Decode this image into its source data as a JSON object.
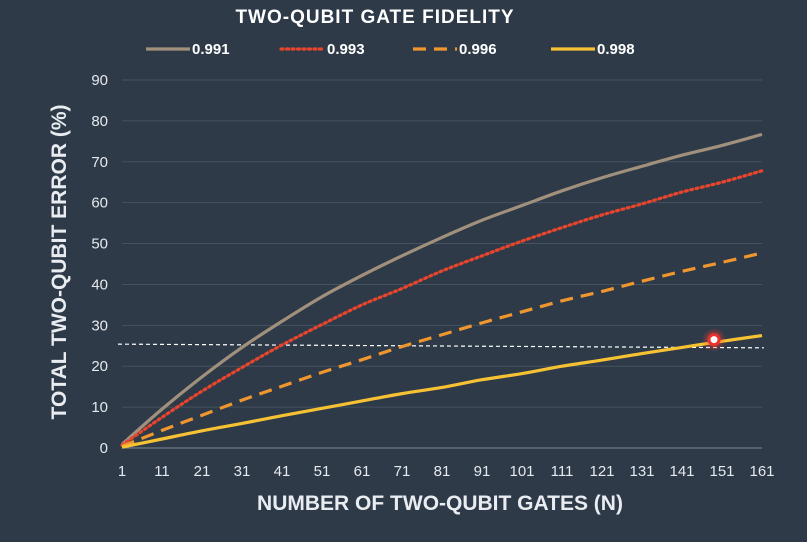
{
  "chart_data": {
    "type": "line",
    "title": "TWO-QUBIT GATE FIDELITY",
    "xlabel": "NUMBER OF TWO-QUBIT GATES (N)",
    "ylabel": "TOTAL TWO-QUBIT ERROR (%)",
    "x_ticks": [
      "1",
      "11",
      "21",
      "31",
      "41",
      "51",
      "61",
      "71",
      "81",
      "91",
      "101",
      "111",
      "121",
      "131",
      "141",
      "151",
      "161"
    ],
    "y_ticks": [
      "0",
      "10",
      "20",
      "30",
      "40",
      "50",
      "60",
      "70",
      "80",
      "90"
    ],
    "xlim": [
      1,
      161
    ],
    "ylim": [
      0,
      90
    ],
    "grid": "horizontal",
    "legend_position": "top",
    "x": [
      1,
      11,
      21,
      31,
      41,
      51,
      61,
      71,
      81,
      91,
      101,
      111,
      121,
      131,
      141,
      151,
      161
    ],
    "series": [
      {
        "name": "0.991",
        "color": "#a0907c",
        "style": "solid",
        "values": [
          0.9,
          9.5,
          17.4,
          24.6,
          31.0,
          37.0,
          42.2,
          47.0,
          51.5,
          55.7,
          59.3,
          62.9,
          66.1,
          68.9,
          71.6,
          74.0,
          76.7
        ]
      },
      {
        "name": "0.993",
        "color": "#e8452c",
        "style": "dotted",
        "values": [
          0.7,
          7.5,
          13.9,
          19.7,
          25.2,
          30.2,
          35.0,
          39.0,
          43.3,
          47.0,
          50.6,
          53.9,
          57.0,
          59.7,
          62.6,
          65.0,
          67.8
        ]
      },
      {
        "name": "0.996",
        "color": "#f0962e",
        "style": "dashed",
        "values": [
          0.4,
          4.3,
          8.0,
          11.7,
          15.1,
          18.5,
          21.6,
          24.8,
          27.7,
          30.6,
          33.3,
          36.0,
          38.3,
          40.8,
          43.2,
          45.4,
          47.7
        ]
      },
      {
        "name": "0.998",
        "color": "#f6c234",
        "style": "solid",
        "values": [
          0.2,
          2.2,
          4.2,
          6.0,
          7.9,
          9.7,
          11.5,
          13.3,
          14.8,
          16.7,
          18.2,
          20.0,
          21.5,
          23.1,
          24.6,
          26.1,
          27.5
        ]
      }
    ],
    "reference_line": {
      "y_start": 25.4,
      "y_end": 24.5,
      "style": "dashed",
      "color": "#ffffff"
    },
    "highlight_marker": {
      "x": 149,
      "y": 26.5,
      "color": "#e8332c"
    }
  }
}
